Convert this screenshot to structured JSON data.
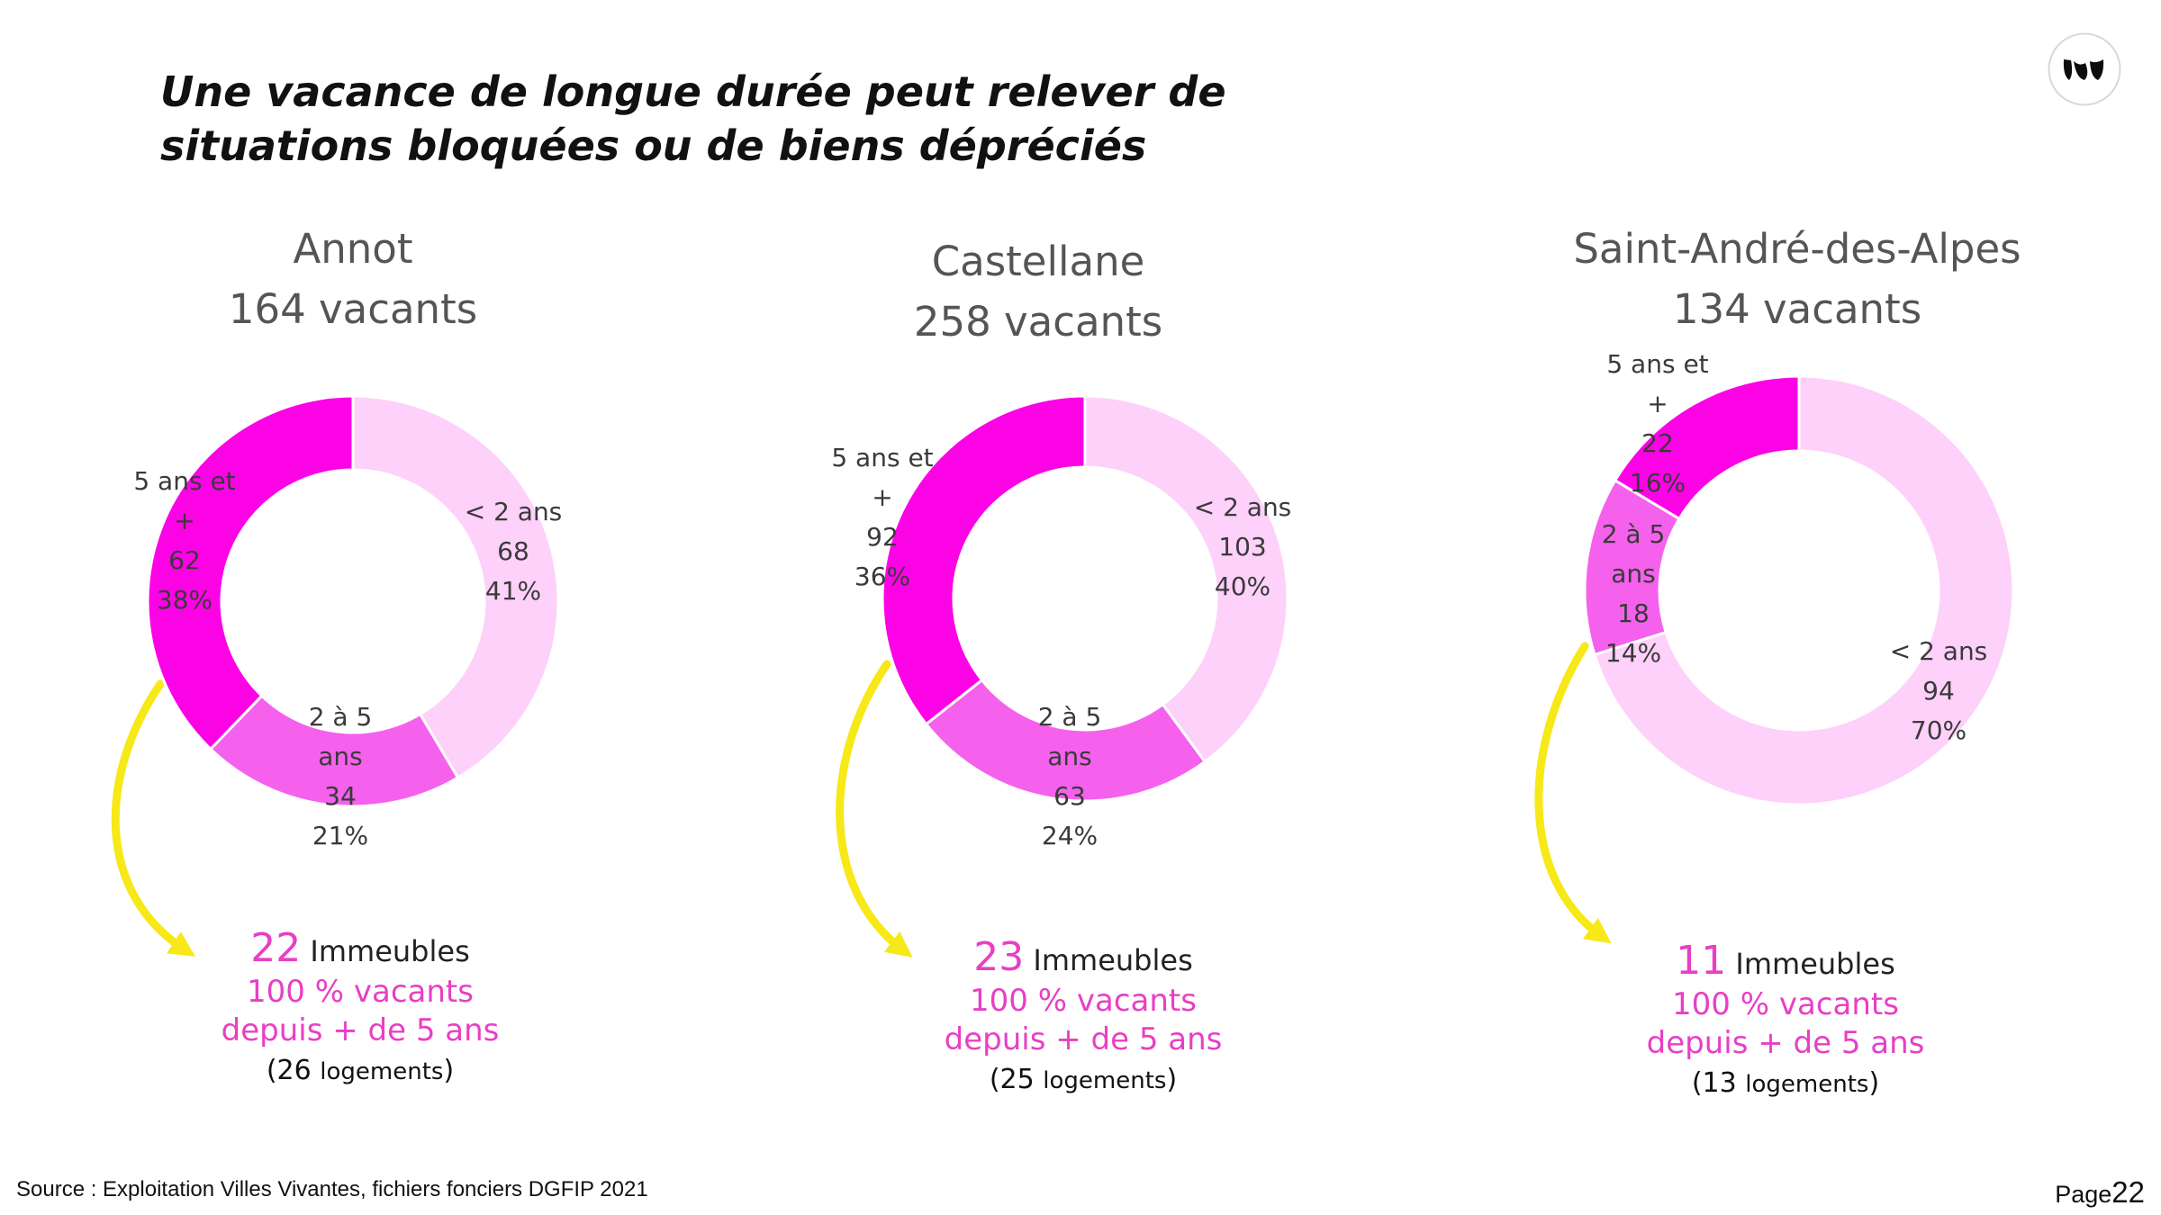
{
  "title": {
    "line1": "Une vacance de longue durée peut relever de",
    "line2": "situations bloquées ou de biens dépréciés"
  },
  "colors": {
    "lt2": "#fdd1fa",
    "mid": "#f561ec",
    "gt5": "#fc03e6",
    "accent_text": "#e83fc4",
    "arrow": "#f7e817"
  },
  "cities": [
    {
      "name": "Annot",
      "total": "164 vacants",
      "summary": {
        "count": "22",
        "unit": "Immeubles",
        "line2": "100 % vacants",
        "line3": "depuis + de 5 ans",
        "logements_num": "(26",
        "logements_word": "logements",
        "logements_close": ")"
      }
    },
    {
      "name": "Castellane",
      "total": "258 vacants",
      "summary": {
        "count": "23",
        "unit": "Immeubles",
        "line2": "100 % vacants",
        "line3": "depuis + de 5 ans",
        "logements_num": "(25",
        "logements_word": "logements",
        "logements_close": ")"
      }
    },
    {
      "name": "Saint-André-des-Alpes",
      "total": "134 vacants",
      "summary": {
        "count": "11",
        "unit": "Immeubles",
        "line2": "100 % vacants",
        "line3": "depuis + de 5 ans",
        "logements_num": "(13",
        "logements_word": "logements",
        "logements_close": ")"
      }
    }
  ],
  "chart_data": [
    {
      "type": "pie",
      "title": "Annot",
      "categories": [
        "< 2 ans",
        "2 à 5 ans",
        "5 ans et +"
      ],
      "values": [
        68,
        34,
        62
      ],
      "percent_labels": [
        "41%",
        "21%",
        "38%"
      ],
      "label_lines": [
        [
          "< 2 ans",
          "68",
          "41%"
        ],
        [
          "2 à 5",
          "ans",
          "34",
          "21%"
        ],
        [
          "5 ans et",
          "+",
          "62",
          "38%"
        ]
      ]
    },
    {
      "type": "pie",
      "title": "Castellane",
      "categories": [
        "< 2 ans",
        "2 à 5 ans",
        "5 ans et +"
      ],
      "values": [
        103,
        63,
        92
      ],
      "percent_labels": [
        "40%",
        "24%",
        "36%"
      ],
      "label_lines": [
        [
          "< 2 ans",
          "103",
          "40%"
        ],
        [
          "2 à 5",
          "ans",
          "63",
          "24%"
        ],
        [
          "5 ans et",
          "+",
          "92",
          "36%"
        ]
      ]
    },
    {
      "type": "pie",
      "title": "Saint-André-des-Alpes",
      "categories": [
        "< 2 ans",
        "2 à 5 ans",
        "5 ans et +"
      ],
      "values": [
        94,
        18,
        22
      ],
      "percent_labels": [
        "70%",
        "14%",
        "16%"
      ],
      "label_lines": [
        [
          "< 2 ans",
          "94",
          "70%"
        ],
        [
          "2 à 5",
          "ans",
          "18",
          "14%"
        ],
        [
          "5 ans et",
          "+",
          "22",
          "16%"
        ]
      ]
    }
  ],
  "footer": {
    "source": "Source : Exploitation Villes Vivantes, fichiers fonciers DGFIP 2021",
    "page_label": "Page",
    "page_number": "22"
  }
}
